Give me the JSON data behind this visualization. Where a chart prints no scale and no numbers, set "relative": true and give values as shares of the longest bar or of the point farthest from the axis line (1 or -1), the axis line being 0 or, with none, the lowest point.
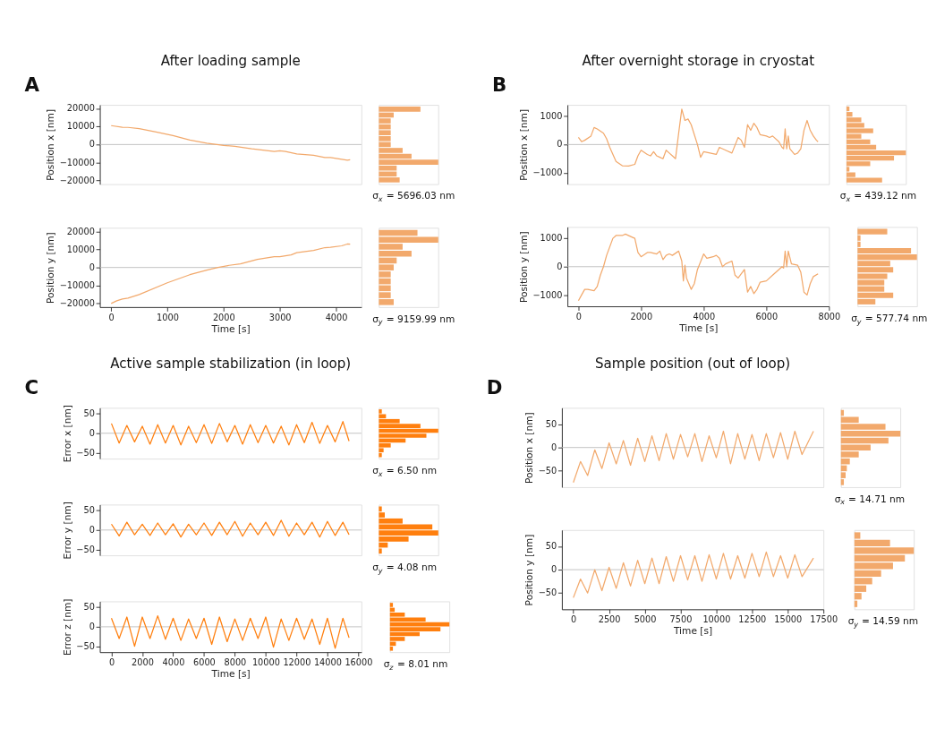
{
  "chart_data": [
    {
      "type": "line",
      "title": "After loading sample",
      "annotations": [
        "A"
      ],
      "ylabel": "Position x [nm]",
      "xlim": [
        -200,
        4450
      ],
      "ylim": [
        -22000,
        22000
      ],
      "yticks": [
        -20000,
        -10000,
        0,
        10000,
        20000
      ],
      "tick_labels": "y",
      "grid": false,
      "line_style": "solid",
      "ref_lines": [
        {
          "axis": "y",
          "value": 0,
          "color": "#bbbbbb"
        }
      ],
      "x": [
        0,
        200,
        300,
        500,
        800,
        1100,
        1400,
        1700,
        2000,
        2200,
        2500,
        2800,
        2900,
        3000,
        3100,
        3300,
        3600,
        3800,
        3900,
        4200,
        4250
      ],
      "series": [
        {
          "color": "#f2a96c",
          "values": [
            10500,
            9600,
            9500,
            8800,
            7000,
            5000,
            2500,
            800,
            -500,
            -1000,
            -2400,
            -3500,
            -3900,
            -3500,
            -3800,
            -5200,
            -6000,
            -7200,
            -7200,
            -8700,
            -8500
          ]
        }
      ]
    },
    {
      "type": "bar",
      "orientation": "horizontal",
      "relative": true,
      "tick_labels": false,
      "color": "#f2a96c",
      "annotations": [
        "σ$_{x}$ = 5696.03 nm"
      ],
      "categories": [
        null,
        null,
        null,
        null,
        null,
        null,
        null,
        null,
        null,
        null,
        null,
        null,
        null
      ],
      "values": [
        0.7,
        0.25,
        0.2,
        0.2,
        0.2,
        0.2,
        0.2,
        0.4,
        0.55,
        1.0,
        0.3,
        0.3,
        0.35
      ]
    },
    {
      "type": "line",
      "ylabel": "Position y [nm]",
      "xlabel": "Time [s]",
      "xlim": [
        -200,
        4450
      ],
      "xticks": [
        0,
        1000,
        2000,
        3000,
        4000
      ],
      "ylim": [
        -22000,
        22000
      ],
      "yticks": [
        -20000,
        -10000,
        0,
        10000,
        20000
      ],
      "grid": false,
      "line_style": "solid",
      "ref_lines": [
        {
          "axis": "y",
          "value": 0,
          "color": "#bbbbbb"
        }
      ],
      "x": [
        0,
        100,
        200,
        300,
        500,
        1000,
        1400,
        1700,
        1900,
        2100,
        2300,
        2600,
        2900,
        3000,
        3200,
        3300,
        3600,
        3800,
        3900,
        4100,
        4200,
        4250
      ],
      "series": [
        {
          "color": "#f2a96c",
          "values": [
            -20000,
            -18500,
            -17500,
            -17000,
            -15000,
            -8500,
            -4000,
            -1500,
            0,
            1200,
            2000,
            4500,
            6000,
            6000,
            7000,
            8200,
            9500,
            11000,
            11200,
            12000,
            13000,
            12900
          ]
        }
      ]
    },
    {
      "type": "bar",
      "orientation": "horizontal",
      "relative": true,
      "tick_labels": false,
      "color": "#f2a96c",
      "annotations": [
        "σ$_{y}$ = 9159.99 nm"
      ],
      "categories": [
        null,
        null,
        null,
        null,
        null,
        null,
        null,
        null,
        null,
        null,
        null
      ],
      "values": [
        0.65,
        1.0,
        0.4,
        0.55,
        0.3,
        0.25,
        0.2,
        0.2,
        0.2,
        0.2,
        0.25
      ]
    },
    {
      "type": "line",
      "title": "After overnight storage in cryostat",
      "annotations": [
        "B"
      ],
      "ylabel": "Position x [nm]",
      "xlim": [
        -350,
        8000
      ],
      "ylim": [
        -1400,
        1400
      ],
      "yticks": [
        -1000,
        0,
        1000
      ],
      "tick_labels": "y",
      "grid": false,
      "line_style": "solid",
      "ref_lines": [
        {
          "axis": "y",
          "value": 0,
          "color": "#bbbbbb"
        }
      ],
      "x": [
        0,
        100,
        200,
        400,
        500,
        600,
        800,
        900,
        1000,
        1200,
        1400,
        1600,
        1800,
        1900,
        2000,
        2200,
        2300,
        2400,
        2500,
        2600,
        2700,
        2800,
        2900,
        3000,
        3100,
        3200,
        3300,
        3400,
        3500,
        3600,
        3800,
        3900,
        4000,
        4200,
        4400,
        4500,
        4700,
        4900,
        5100,
        5200,
        5300,
        5400,
        5500,
        5600,
        5700,
        5800,
        6000,
        6100,
        6200,
        6400,
        6500,
        6550,
        6600,
        6650,
        6700,
        6750,
        6900,
        7000,
        7100,
        7200,
        7300,
        7400,
        7500,
        7600,
        7650
      ],
      "series": [
        {
          "color": "#f2a96c",
          "values": [
            250,
            100,
            150,
            300,
            600,
            550,
            400,
            200,
            -100,
            -600,
            -750,
            -760,
            -700,
            -400,
            -200,
            -350,
            -400,
            -250,
            -400,
            -450,
            -500,
            -200,
            -300,
            -400,
            -500,
            400,
            1250,
            850,
            900,
            700,
            0,
            -450,
            -250,
            -300,
            -350,
            -100,
            -200,
            -300,
            250,
            150,
            -100,
            700,
            500,
            750,
            600,
            350,
            300,
            250,
            300,
            100,
            -100,
            -150,
            550,
            -150,
            300,
            -150,
            -350,
            -300,
            -150,
            500,
            850,
            500,
            300,
            150,
            100
          ]
        }
      ]
    },
    {
      "type": "bar",
      "orientation": "horizontal",
      "relative": true,
      "tick_labels": false,
      "color": "#f2a96c",
      "annotations": [
        "σ$_{x}$ = 439.12 nm"
      ],
      "categories": [
        null,
        null,
        null,
        null,
        null,
        null,
        null,
        null,
        null,
        null,
        null,
        null,
        null,
        null
      ],
      "values": [
        0.05,
        0.1,
        0.25,
        0.3,
        0.45,
        0.25,
        0.4,
        0.5,
        1.0,
        0.8,
        0.4,
        0.05,
        0.15,
        0.6
      ]
    },
    {
      "type": "line",
      "ylabel": "Position y [nm]",
      "xlabel": "Time [s]",
      "xlim": [
        -350,
        8000
      ],
      "xticks": [
        0,
        2000,
        4000,
        6000,
        8000
      ],
      "ylim": [
        -1400,
        1400
      ],
      "yticks": [
        -1000,
        0,
        1000
      ],
      "grid": false,
      "line_style": "solid",
      "ref_lines": [
        {
          "axis": "y",
          "value": 0,
          "color": "#bbbbbb"
        }
      ],
      "x": [
        0,
        100,
        200,
        300,
        500,
        600,
        700,
        800,
        900,
        1000,
        1100,
        1200,
        1400,
        1500,
        1700,
        1800,
        1900,
        2000,
        2200,
        2300,
        2500,
        2600,
        2700,
        2800,
        2900,
        3000,
        3200,
        3300,
        3350,
        3400,
        3450,
        3600,
        3700,
        3800,
        4000,
        4100,
        4300,
        4400,
        4500,
        4600,
        4700,
        4900,
        5000,
        5100,
        5300,
        5350,
        5400,
        5500,
        5600,
        5700,
        5800,
        6000,
        6200,
        6400,
        6500,
        6550,
        6600,
        6650,
        6700,
        6800,
        7000,
        7100,
        7200,
        7300,
        7400,
        7500,
        7650
      ],
      "series": [
        {
          "color": "#f2a96c",
          "values": [
            -1200,
            -1000,
            -800,
            -800,
            -850,
            -700,
            -300,
            0,
            400,
            700,
            1000,
            1100,
            1100,
            1150,
            1050,
            1000,
            500,
            350,
            500,
            500,
            450,
            550,
            250,
            400,
            450,
            400,
            550,
            200,
            -500,
            50,
            -400,
            -800,
            -600,
            -100,
            450,
            300,
            350,
            400,
            300,
            0,
            100,
            200,
            -300,
            -400,
            -100,
            -500,
            -900,
            -700,
            -950,
            -800,
            -550,
            -500,
            -300,
            -100,
            0,
            -50,
            550,
            0,
            550,
            100,
            50,
            -200,
            -900,
            -1000,
            -600,
            -350,
            -250
          ]
        }
      ]
    },
    {
      "type": "bar",
      "orientation": "horizontal",
      "relative": true,
      "tick_labels": false,
      "color": "#f2a96c",
      "annotations": [
        "σ$_{y}$ = 577.74 nm"
      ],
      "categories": [
        null,
        null,
        null,
        null,
        null,
        null,
        null,
        null,
        null,
        null,
        null,
        null
      ],
      "values": [
        0.5,
        0.05,
        0.05,
        0.9,
        1.0,
        0.55,
        0.6,
        0.5,
        0.45,
        0.45,
        0.6,
        0.3
      ]
    },
    {
      "type": "line",
      "title": "Active sample stabilization (in loop)",
      "annotations": [
        "C"
      ],
      "ylabel": "Error x [nm]",
      "xlim": [
        -750,
        16200
      ],
      "ylim": [
        -65,
        65
      ],
      "yticks": [
        -50,
        0,
        50
      ],
      "tick_labels": "y",
      "grid": false,
      "line_style": "solid",
      "ref_lines": [
        {
          "axis": "y",
          "value": 0,
          "color": "#bbbbbb"
        }
      ],
      "x": [
        0,
        500,
        1000,
        1500,
        2000,
        2500,
        3000,
        3500,
        4000,
        4500,
        5000,
        5500,
        6000,
        6500,
        7000,
        7500,
        8000,
        8500,
        9000,
        9500,
        10000,
        10500,
        11000,
        11500,
        12000,
        12500,
        13000,
        13500,
        14000,
        14500,
        15000,
        15400
      ],
      "series": [
        {
          "color": "#ff7f0e",
          "values": [
            25,
            -25,
            20,
            -22,
            18,
            -28,
            22,
            -25,
            20,
            -30,
            18,
            -24,
            22,
            -26,
            25,
            -22,
            20,
            -28,
            22,
            -24,
            20,
            -25,
            18,
            -30,
            22,
            -24,
            28,
            -26,
            20,
            -22,
            30,
            -20
          ]
        }
      ]
    },
    {
      "type": "bar",
      "orientation": "horizontal",
      "relative": true,
      "tick_labels": false,
      "color": "#ff7f0e",
      "annotations": [
        "σ$_{x}$ = 6.50 nm"
      ],
      "categories": [
        null,
        null,
        null,
        null,
        null,
        null,
        null,
        null,
        null,
        null
      ],
      "values": [
        0.05,
        0.12,
        0.35,
        0.7,
        1.0,
        0.8,
        0.45,
        0.2,
        0.08,
        0.05
      ]
    },
    {
      "type": "line",
      "ylabel": "Error y [nm]",
      "xlim": [
        -750,
        16200
      ],
      "ylim": [
        -65,
        65
      ],
      "yticks": [
        -50,
        0,
        50
      ],
      "tick_labels": "y",
      "grid": false,
      "line_style": "solid",
      "ref_lines": [
        {
          "axis": "y",
          "value": 0,
          "color": "#bbbbbb"
        }
      ],
      "x": [
        0,
        500,
        1000,
        1500,
        2000,
        2500,
        3000,
        3500,
        4000,
        4500,
        5000,
        5500,
        6000,
        6500,
        7000,
        7500,
        8000,
        8500,
        9000,
        9500,
        10000,
        10500,
        11000,
        11500,
        12000,
        12500,
        13000,
        13500,
        14000,
        14500,
        15000,
        15400
      ],
      "series": [
        {
          "color": "#ff7f0e",
          "values": [
            15,
            -15,
            20,
            -12,
            15,
            -14,
            18,
            -12,
            16,
            -18,
            15,
            -12,
            18,
            -14,
            20,
            -12,
            22,
            -16,
            18,
            -12,
            20,
            -14,
            25,
            -16,
            18,
            -12,
            20,
            -18,
            22,
            -14,
            20,
            -12
          ]
        }
      ]
    },
    {
      "type": "bar",
      "orientation": "horizontal",
      "relative": true,
      "tick_labels": false,
      "color": "#ff7f0e",
      "annotations": [
        "σ$_{y}$ = 4.08 nm"
      ],
      "categories": [
        null,
        null,
        null,
        null,
        null,
        null,
        null,
        null
      ],
      "values": [
        0.05,
        0.1,
        0.4,
        0.9,
        1.0,
        0.5,
        0.15,
        0.05
      ]
    },
    {
      "type": "line",
      "ylabel": "Error z [nm]",
      "xlabel": "Time [s]",
      "xlim": [
        -750,
        16200
      ],
      "xticks": [
        0,
        2000,
        4000,
        6000,
        8000,
        10000,
        12000,
        14000,
        16000
      ],
      "ylim": [
        -65,
        65
      ],
      "yticks": [
        -50,
        0,
        50
      ],
      "grid": false,
      "line_style": "solid",
      "ref_lines": [
        {
          "axis": "y",
          "value": 0,
          "color": "#bbbbbb"
        }
      ],
      "x": [
        0,
        500,
        1000,
        1500,
        2000,
        2500,
        3000,
        3500,
        4000,
        4500,
        5000,
        5500,
        6000,
        6500,
        7000,
        7500,
        8000,
        8500,
        9000,
        9500,
        10000,
        10500,
        11000,
        11500,
        12000,
        12500,
        13000,
        13500,
        14000,
        14500,
        15000,
        15400
      ],
      "series": [
        {
          "color": "#ff7f0e",
          "values": [
            22,
            -30,
            25,
            -50,
            25,
            -30,
            28,
            -32,
            22,
            -35,
            20,
            -30,
            22,
            -45,
            25,
            -38,
            20,
            -35,
            22,
            -30,
            25,
            -52,
            20,
            -35,
            22,
            -32,
            20,
            -45,
            22,
            -55,
            22,
            -28
          ]
        }
      ]
    },
    {
      "type": "bar",
      "orientation": "horizontal",
      "relative": true,
      "tick_labels": false,
      "color": "#ff7f0e",
      "annotations": [
        "σ$_{z}$ = 8.01 nm"
      ],
      "categories": [
        null,
        null,
        null,
        null,
        null,
        null,
        null,
        null,
        null,
        null
      ],
      "values": [
        0.05,
        0.08,
        0.25,
        0.6,
        1.0,
        0.85,
        0.5,
        0.25,
        0.1,
        0.05
      ]
    },
    {
      "type": "line",
      "title": "Sample position (out of loop)",
      "annotations": [
        "D"
      ],
      "ylabel": "Position x [nm]",
      "xlim": [
        -800,
        17500
      ],
      "ylim": [
        -85,
        85
      ],
      "yticks": [
        -50,
        0,
        50
      ],
      "tick_labels": "y",
      "grid": false,
      "line_style": "solid",
      "ref_lines": [
        {
          "axis": "y",
          "value": 0,
          "color": "#bbbbbb"
        }
      ],
      "x": [
        0,
        500,
        1000,
        1500,
        2000,
        2500,
        3000,
        3500,
        4000,
        4500,
        5000,
        5500,
        6000,
        6500,
        7000,
        7500,
        8000,
        8500,
        9000,
        9500,
        10000,
        10500,
        11000,
        11500,
        12000,
        12500,
        13000,
        13500,
        14000,
        14500,
        15000,
        15500,
        16000,
        16800
      ],
      "series": [
        {
          "color": "#f2a96c",
          "values": [
            -75,
            -30,
            -60,
            -5,
            -45,
            10,
            -35,
            15,
            -38,
            20,
            -30,
            25,
            -28,
            30,
            -25,
            28,
            -20,
            30,
            -30,
            25,
            -22,
            35,
            -35,
            30,
            -25,
            28,
            -28,
            30,
            -22,
            32,
            -25,
            35,
            -15,
            35
          ]
        }
      ]
    },
    {
      "type": "bar",
      "orientation": "horizontal",
      "relative": true,
      "tick_labels": false,
      "color": "#f2a96c",
      "annotations": [
        "σ$_{x}$ = 14.71 nm"
      ],
      "categories": [
        null,
        null,
        null,
        null,
        null,
        null,
        null,
        null,
        null,
        null,
        null
      ],
      "values": [
        0.05,
        0.3,
        0.75,
        1.0,
        0.8,
        0.5,
        0.3,
        0.15,
        0.1,
        0.08,
        0.05
      ]
    },
    {
      "type": "line",
      "ylabel": "Position y [nm]",
      "xlabel": "Time [s]",
      "xlim": [
        -800,
        17500
      ],
      "xticks": [
        0,
        2500,
        5000,
        7500,
        10000,
        12500,
        15000,
        17500
      ],
      "ylim": [
        -85,
        85
      ],
      "yticks": [
        -50,
        0,
        50
      ],
      "grid": false,
      "line_style": "solid",
      "ref_lines": [
        {
          "axis": "y",
          "value": 0,
          "color": "#bbbbbb"
        }
      ],
      "x": [
        0,
        500,
        1000,
        1500,
        2000,
        2500,
        3000,
        3500,
        4000,
        4500,
        5000,
        5500,
        6000,
        6500,
        7000,
        7500,
        8000,
        8500,
        9000,
        9500,
        10000,
        10500,
        11000,
        11500,
        12000,
        12500,
        13000,
        13500,
        14000,
        14500,
        15000,
        15500,
        16000,
        16800
      ],
      "series": [
        {
          "color": "#f2a96c",
          "values": [
            -60,
            -20,
            -50,
            0,
            -45,
            5,
            -40,
            15,
            -35,
            20,
            -30,
            25,
            -30,
            28,
            -25,
            30,
            -22,
            30,
            -25,
            32,
            -20,
            35,
            -20,
            30,
            -18,
            35,
            -15,
            38,
            -15,
            30,
            -18,
            32,
            -15,
            25
          ]
        }
      ]
    },
    {
      "type": "bar",
      "orientation": "horizontal",
      "relative": true,
      "tick_labels": false,
      "color": "#f2a96c",
      "annotations": [
        "σ$_{y}$ = 14.59 nm"
      ],
      "categories": [
        null,
        null,
        null,
        null,
        null,
        null,
        null,
        null,
        null,
        null
      ],
      "values": [
        0.1,
        0.6,
        1.0,
        0.85,
        0.65,
        0.45,
        0.3,
        0.2,
        0.12,
        0.05
      ]
    }
  ]
}
